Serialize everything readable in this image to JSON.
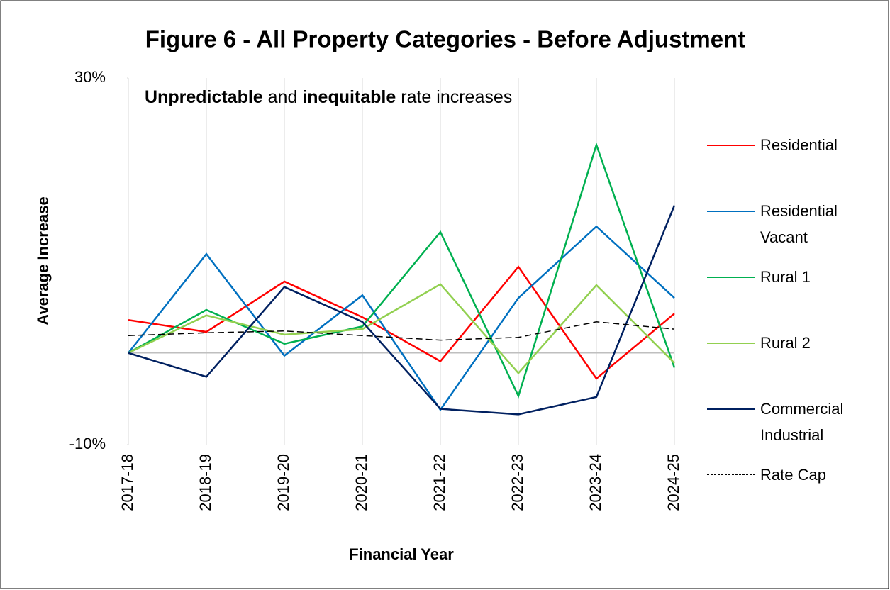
{
  "chart_data": {
    "type": "line",
    "title": "Figure 6 - All Property Categories - Before Adjustment",
    "annotation": [
      {
        "text": "Unpredictable",
        "bold": true
      },
      {
        "text": "and",
        "bold": false
      },
      {
        "text": "inequitable",
        "bold": true
      },
      {
        "text": "rate increases",
        "bold": false
      }
    ],
    "xlabel": "Financial Year",
    "ylabel": "Average Increase",
    "categories": [
      "2017-18",
      "2018-19",
      "2019-20",
      "2020-21",
      "2021-22",
      "2022-23",
      "2023-24",
      "2024-25"
    ],
    "ylim": [
      -10,
      30
    ],
    "yticks": [
      {
        "value": -10,
        "label": "-10%"
      },
      {
        "value": 30,
        "label": "30%"
      }
    ],
    "grid": true,
    "legend": "right",
    "series": [
      {
        "name": "Residential",
        "color": "#ff0000",
        "dashed": false,
        "values": [
          3.6,
          2.3,
          7.8,
          3.9,
          -0.9,
          9.4,
          -2.8,
          4.3
        ]
      },
      {
        "name": "Residential Vacant",
        "color": "#0070c0",
        "dashed": false,
        "values": [
          0,
          10.8,
          -0.3,
          6.3,
          -6.2,
          6.0,
          13.8,
          6.0
        ]
      },
      {
        "name": "Rural 1",
        "color": "#00b050",
        "dashed": false,
        "values": [
          0,
          4.7,
          1.0,
          2.9,
          13.2,
          -4.7,
          22.7,
          -1.6
        ]
      },
      {
        "name": "Rural 2",
        "color": "#92d050",
        "dashed": false,
        "values": [
          0,
          4.1,
          2.0,
          2.6,
          7.5,
          -2.2,
          7.4,
          -1.1
        ]
      },
      {
        "name": "Commercial Industrial",
        "color": "#002060",
        "dashed": false,
        "values": [
          0,
          -2.6,
          7.2,
          3.4,
          -6.1,
          -6.7,
          -4.8,
          16.1
        ]
      },
      {
        "name": "Rate Cap",
        "color": "#000000",
        "dashed": true,
        "values": [
          1.9,
          2.2,
          2.4,
          1.9,
          1.4,
          1.7,
          3.4,
          2.6
        ]
      }
    ]
  }
}
